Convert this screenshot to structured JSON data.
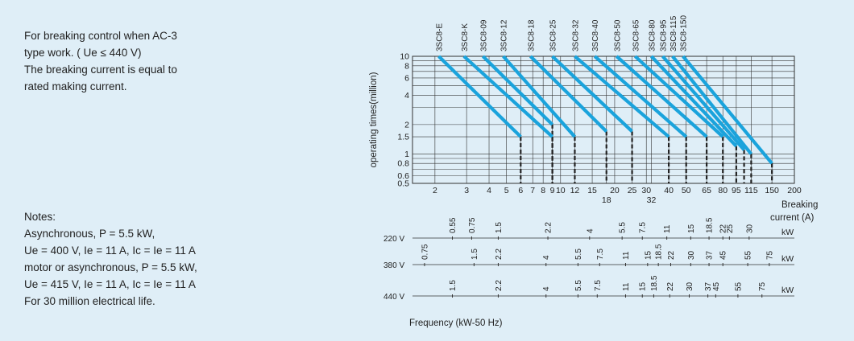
{
  "intro": {
    "lines": [
      "For breaking control when AC-3",
      "type work. ( Ue ≤ 440 V)",
      "The breaking current is equal to",
      "rated making current."
    ]
  },
  "notes": {
    "lines": [
      "Notes:",
      "Asynchronous, P = 5.5 kW,",
      "Ue = 400 V, Ie = 11 A, Ic = Ie = 11 A",
      "motor or asynchronous, P = 5.5 kW,",
      "Ue = 415 V, Ie = 11 A, Ic = Ie = 11 A",
      "For 30 million electrical life."
    ]
  },
  "chart_data": {
    "type": "line",
    "title": "",
    "xlabel": "Breaking current (A)",
    "xlabel_lines": [
      "Breaking",
      "current (A)"
    ],
    "ylabel": "operating times(million)",
    "xscale": "log",
    "yscale": "log",
    "xlim": [
      1.5,
      200
    ],
    "ylim": [
      0.5,
      10
    ],
    "grid": true,
    "line_color": "#1aa3dc",
    "y_ticks": [
      {
        "v": 0.5,
        "label": "0.5"
      },
      {
        "v": 0.6,
        "label": "0.6"
      },
      {
        "v": 0.7,
        "label": ""
      },
      {
        "v": 0.8,
        "label": "0.8"
      },
      {
        "v": 0.9,
        "label": ""
      },
      {
        "v": 1,
        "label": "1"
      },
      {
        "v": 1.5,
        "label": "1.5"
      },
      {
        "v": 2,
        "label": "2"
      },
      {
        "v": 3,
        "label": ""
      },
      {
        "v": 4,
        "label": "4"
      },
      {
        "v": 5,
        "label": ""
      },
      {
        "v": 6,
        "label": "6"
      },
      {
        "v": 7,
        "label": ""
      },
      {
        "v": 8,
        "label": "8"
      },
      {
        "v": 9,
        "label": ""
      },
      {
        "v": 10,
        "label": "10"
      }
    ],
    "x_ticks": [
      {
        "v": 2,
        "label": "2"
      },
      {
        "v": 3,
        "label": "3"
      },
      {
        "v": 4,
        "label": "4"
      },
      {
        "v": 5,
        "label": "5"
      },
      {
        "v": 6,
        "label": "6"
      },
      {
        "v": 7,
        "label": "7"
      },
      {
        "v": 8,
        "label": "8"
      },
      {
        "v": 9,
        "label": "9"
      },
      {
        "v": 10,
        "label": "10"
      },
      {
        "v": 12,
        "label": "12"
      },
      {
        "v": 15,
        "label": "15"
      },
      {
        "v": 20,
        "label": "20"
      },
      {
        "v": 25,
        "label": "25"
      },
      {
        "v": 30,
        "label": "30"
      },
      {
        "v": 40,
        "label": "40"
      },
      {
        "v": 50,
        "label": "50"
      },
      {
        "v": 65,
        "label": "65"
      },
      {
        "v": 80,
        "label": "80"
      },
      {
        "v": 95,
        "label": "95"
      },
      {
        "v": 115,
        "label": "115"
      },
      {
        "v": 150,
        "label": "150"
      },
      {
        "v": 200,
        "label": "200"
      }
    ],
    "x_ticks_lower": [
      {
        "v": 18,
        "label": "18"
      },
      {
        "v": 32,
        "label": "32"
      }
    ],
    "series": [
      {
        "name": "3SC8-E",
        "x": [
          2.1,
          6
        ],
        "y": [
          10,
          1.5
        ]
      },
      {
        "name": "3SC8-K",
        "x": [
          2.9,
          9
        ],
        "y": [
          10,
          1.5
        ]
      },
      {
        "name": "3SC8-09",
        "x": [
          3.7,
          9
        ],
        "y": [
          10,
          2
        ]
      },
      {
        "name": "3SC8-12",
        "x": [
          4.8,
          12
        ],
        "y": [
          10,
          1.5
        ]
      },
      {
        "name": "3SC8-18",
        "x": [
          6.8,
          18
        ],
        "y": [
          10,
          1.7
        ]
      },
      {
        "name": "3SC8-25",
        "x": [
          9,
          25
        ],
        "y": [
          10,
          1.7
        ]
      },
      {
        "name": "3SC8-32",
        "x": [
          12,
          40
        ],
        "y": [
          10,
          1.5
        ]
      },
      {
        "name": "3SC8-40",
        "x": [
          15.5,
          50
        ],
        "y": [
          10,
          1.5
        ]
      },
      {
        "name": "3SC8-50",
        "x": [
          20.5,
          65
        ],
        "y": [
          10,
          1.5
        ]
      },
      {
        "name": "3SC8-65",
        "x": [
          26,
          80
        ],
        "y": [
          10,
          1.5
        ]
      },
      {
        "name": "3SC8-80",
        "x": [
          32,
          95
        ],
        "y": [
          10,
          1.2
        ]
      },
      {
        "name": "3SC8-95",
        "x": [
          37,
          105
        ],
        "y": [
          10,
          1.1
        ]
      },
      {
        "name": "3SC8-115",
        "x": [
          42,
          115
        ],
        "y": [
          10,
          1
        ]
      },
      {
        "name": "3SC8-150",
        "x": [
          48,
          150
        ],
        "y": [
          10,
          0.8
        ]
      }
    ],
    "dashed_markers": [
      {
        "x": 6,
        "y": 1.5
      },
      {
        "x": 9,
        "y": 1.5
      },
      {
        "x": 9,
        "y": 2
      },
      {
        "x": 12,
        "y": 1.5
      },
      {
        "x": 18,
        "y": 1.7
      },
      {
        "x": 25,
        "y": 1.7
      },
      {
        "x": 40,
        "y": 1.5
      },
      {
        "x": 50,
        "y": 1.5
      },
      {
        "x": 65,
        "y": 1.5
      },
      {
        "x": 80,
        "y": 1.5
      },
      {
        "x": 95,
        "y": 1.2
      },
      {
        "x": 105,
        "y": 1.1
      },
      {
        "x": 115,
        "y": 1
      },
      {
        "x": 150,
        "y": 0.8
      }
    ],
    "power_scales": [
      {
        "label": "220 V",
        "unit": "kW",
        "values": [
          {
            "x": 2.5,
            "label": "0.55"
          },
          {
            "x": 3.2,
            "label": "0.75"
          },
          {
            "x": 4.5,
            "label": "1.5"
          },
          {
            "x": 8.5,
            "label": "2.2"
          },
          {
            "x": 14.5,
            "label": "4"
          },
          {
            "x": 22,
            "label": "5.5"
          },
          {
            "x": 28.5,
            "label": "7.5"
          },
          {
            "x": 39,
            "label": "11"
          },
          {
            "x": 53,
            "label": "15"
          },
          {
            "x": 67,
            "label": "18.5"
          },
          {
            "x": 80,
            "label": "22"
          },
          {
            "x": 87,
            "label": "25"
          },
          {
            "x": 112,
            "label": "30"
          }
        ]
      },
      {
        "label": "380 V",
        "unit": "kW",
        "values": [
          {
            "x": 1.75,
            "label": "0.75"
          },
          {
            "x": 3.3,
            "label": "1.5"
          },
          {
            "x": 4.5,
            "label": "2.2"
          },
          {
            "x": 8.3,
            "label": "4"
          },
          {
            "x": 12.5,
            "label": "5.5"
          },
          {
            "x": 16.5,
            "label": "7.5"
          },
          {
            "x": 23,
            "label": "11"
          },
          {
            "x": 30.5,
            "label": "15"
          },
          {
            "x": 35,
            "label": "18.5"
          },
          {
            "x": 41,
            "label": "22"
          },
          {
            "x": 53,
            "label": "30"
          },
          {
            "x": 67,
            "label": "37"
          },
          {
            "x": 80,
            "label": "45"
          },
          {
            "x": 110,
            "label": "55"
          },
          {
            "x": 145,
            "label": "75"
          }
        ]
      },
      {
        "label": "440 V",
        "unit": "kW",
        "values": [
          {
            "x": 2.5,
            "label": "1.5"
          },
          {
            "x": 4.5,
            "label": "2.2"
          },
          {
            "x": 8.3,
            "label": "4"
          },
          {
            "x": 12.5,
            "label": "5.5"
          },
          {
            "x": 16,
            "label": "7.5"
          },
          {
            "x": 23,
            "label": "11"
          },
          {
            "x": 28.5,
            "label": "15"
          },
          {
            "x": 33,
            "label": "18.5"
          },
          {
            "x": 40.5,
            "label": "22"
          },
          {
            "x": 52,
            "label": "30"
          },
          {
            "x": 66,
            "label": "37"
          },
          {
            "x": 73,
            "label": "45"
          },
          {
            "x": 97,
            "label": "55"
          },
          {
            "x": 132,
            "label": "75"
          }
        ]
      }
    ],
    "frequency_label": "Frequency (kW-50 Hz)"
  }
}
